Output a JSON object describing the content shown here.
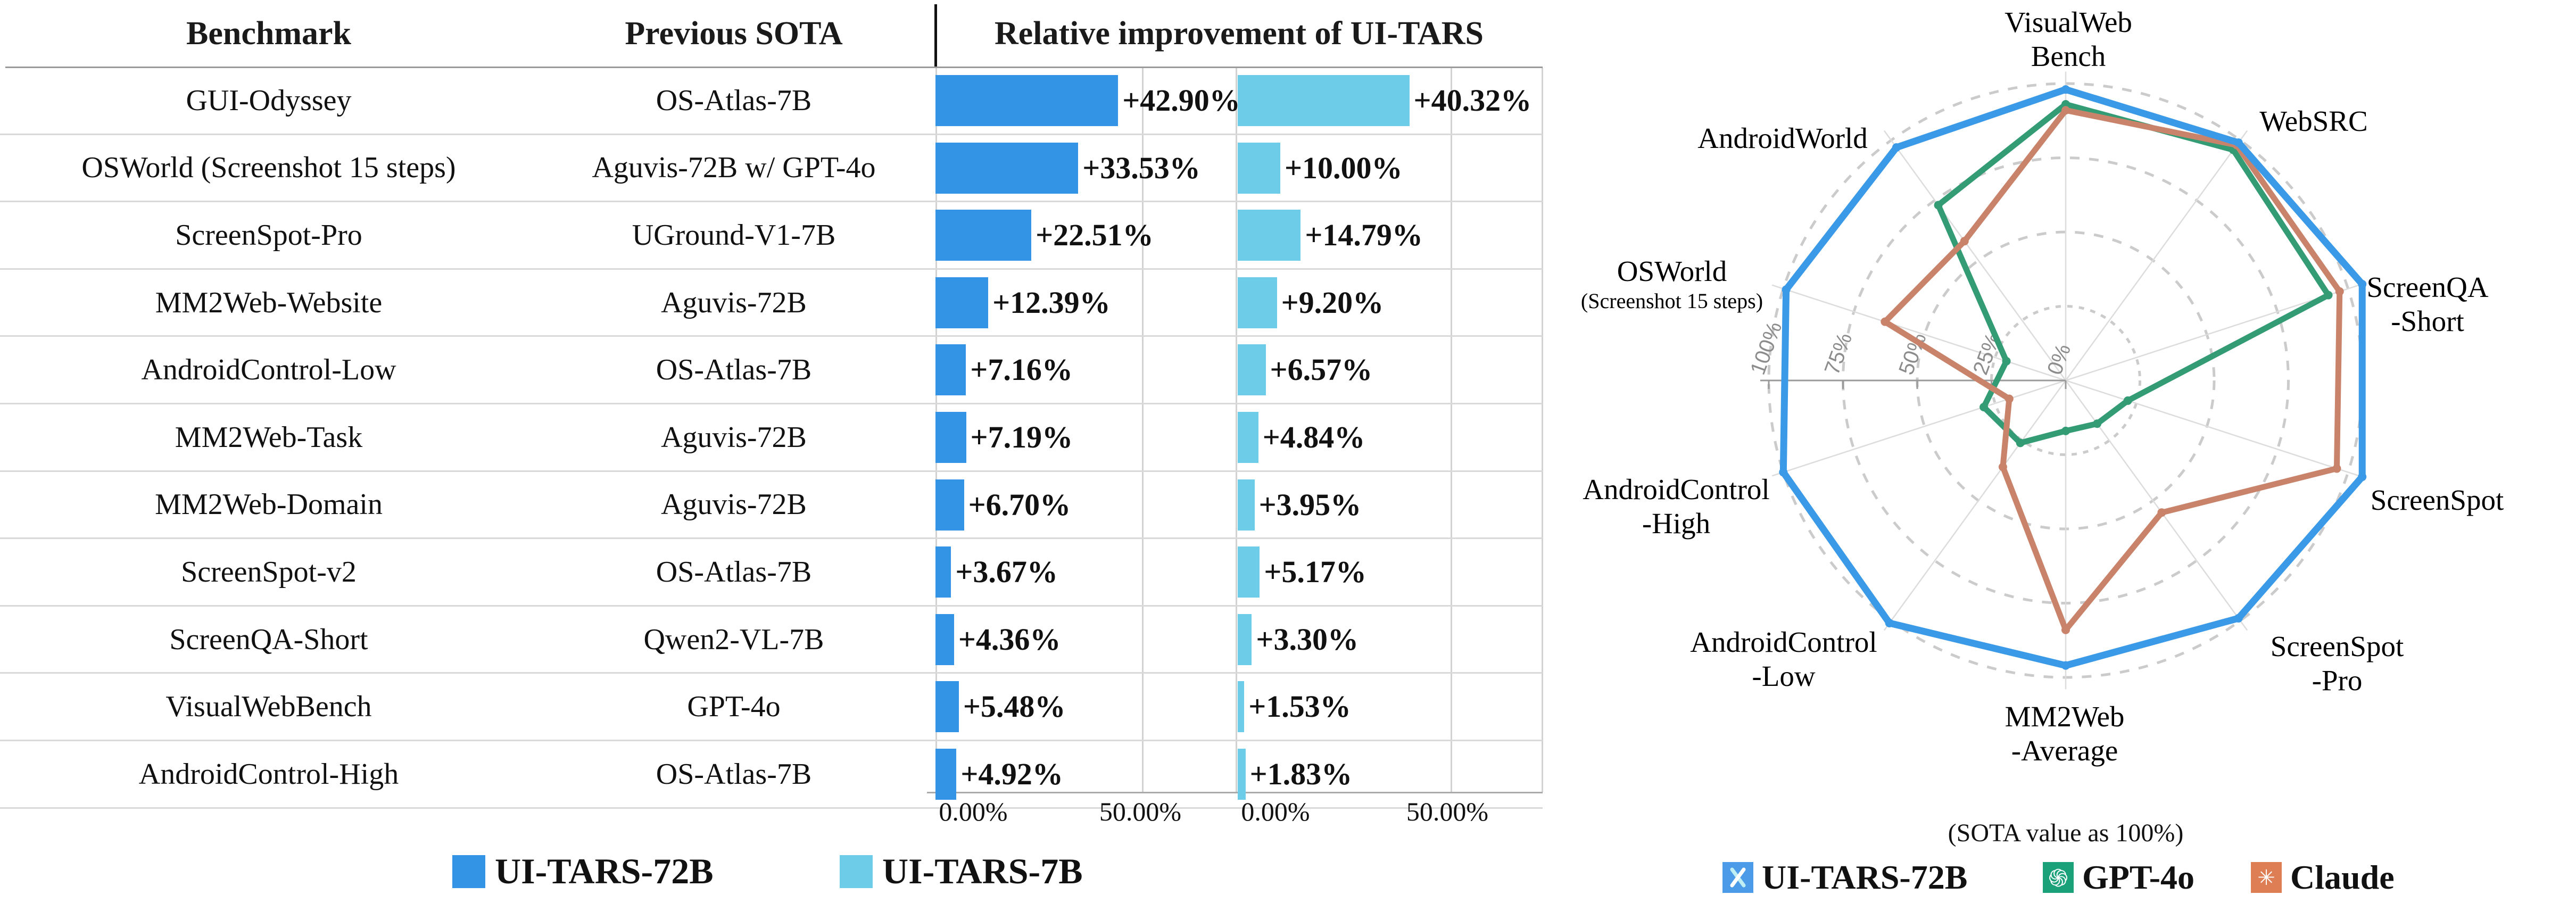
{
  "table": {
    "header": {
      "benchmark": "Benchmark",
      "previous_sota": "Previous SOTA",
      "improvement": "Relative improvement of UI-TARS"
    },
    "rows": [
      {
        "benchmark": "GUI-Odyssey",
        "previous_sota": "OS-Atlas-7B",
        "improvement_72b": "+42.90%",
        "improvement_7b": "+40.32%"
      },
      {
        "benchmark": "OSWorld (Screenshot 15 steps)",
        "previous_sota": "Aguvis-72B w/ GPT-4o",
        "improvement_72b": "+33.53%",
        "improvement_7b": "+10.00%"
      },
      {
        "benchmark": "ScreenSpot-Pro",
        "previous_sota": "UGround-V1-7B",
        "improvement_72b": "+22.51%",
        "improvement_7b": "+14.79%"
      },
      {
        "benchmark": "MM2Web-Website",
        "previous_sota": "Aguvis-72B",
        "improvement_72b": "+12.39%",
        "improvement_7b": "+9.20%"
      },
      {
        "benchmark": "AndroidControl-Low",
        "previous_sota": "OS-Atlas-7B",
        "improvement_72b": "+7.16%",
        "improvement_7b": "+6.57%"
      },
      {
        "benchmark": "MM2Web-Task",
        "previous_sota": "Aguvis-72B",
        "improvement_72b": "+7.19%",
        "improvement_7b": "+4.84%"
      },
      {
        "benchmark": "MM2Web-Domain",
        "previous_sota": "Aguvis-72B",
        "improvement_72b": "+6.70%",
        "improvement_7b": "+3.95%"
      },
      {
        "benchmark": "ScreenSpot-v2",
        "previous_sota": "OS-Atlas-7B",
        "improvement_72b": "+3.67%",
        "improvement_7b": "+5.17%"
      },
      {
        "benchmark": "ScreenQA-Short",
        "previous_sota": "Qwen2-VL-7B",
        "improvement_72b": "+4.36%",
        "improvement_7b": "+3.30%"
      },
      {
        "benchmark": "VisualWebBench",
        "previous_sota": "GPT-4o",
        "improvement_72b": "+5.48%",
        "improvement_7b": "+1.53%"
      },
      {
        "benchmark": "AndroidControl-High",
        "previous_sota": "OS-Atlas-7B",
        "improvement_72b": "+4.92%",
        "improvement_7b": "+1.83%"
      }
    ],
    "x_ticks": [
      "0.00%",
      "50.00%",
      "0.00%",
      "50.00%"
    ],
    "legend": [
      {
        "label": "UI-TARS-72B",
        "color": "#3394E6"
      },
      {
        "label": "UI-TARS-7B",
        "color": "#6DCDE9"
      }
    ]
  },
  "radar": {
    "axis_labels": [
      [
        "VisualWeb",
        "Bench"
      ],
      [
        "WebSRC"
      ],
      [
        "ScreenQA",
        "-Short"
      ],
      [
        "ScreenSpot"
      ],
      [
        "ScreenSpot",
        "-Pro"
      ],
      [
        "MM2Web",
        "-Average"
      ],
      [
        "AndroidControl",
        "-Low"
      ],
      [
        "AndroidControl",
        "-High"
      ],
      [
        "OSWorld",
        "(Screenshot 15 steps)"
      ],
      [
        "AndroidWorld"
      ]
    ],
    "tick_labels": [
      "0%",
      "25%",
      "50%",
      "75%",
      "100%"
    ],
    "caption": "(SOTA value as 100%)",
    "legend": [
      {
        "label": "UI-TARS-72B",
        "color": "#4C9BE8",
        "icon": "uitars-logo"
      },
      {
        "label": "GPT-4o",
        "color": "#1AA179",
        "icon": "openai-logo"
      },
      {
        "label": "Claude",
        "color": "#DD7E55",
        "icon": "claude-logo"
      }
    ]
  },
  "chart_data": [
    {
      "type": "bar",
      "title": "Relative improvement of UI-TARS",
      "orientation": "horizontal",
      "categories": [
        "GUI-Odyssey",
        "OSWorld (Screenshot 15 steps)",
        "ScreenSpot-Pro",
        "MM2Web-Website",
        "AndroidControl-Low",
        "MM2Web-Task",
        "MM2Web-Domain",
        "ScreenSpot-v2",
        "ScreenQA-Short",
        "VisualWebBench",
        "AndroidControl-High"
      ],
      "previous_sota": [
        "OS-Atlas-7B",
        "Aguvis-72B w/ GPT-4o",
        "UGround-V1-7B",
        "Aguvis-72B",
        "OS-Atlas-7B",
        "Aguvis-72B",
        "Aguvis-72B",
        "OS-Atlas-7B",
        "Qwen2-VL-7B",
        "GPT-4o",
        "OS-Atlas-7B"
      ],
      "series": [
        {
          "name": "UI-TARS-72B",
          "color": "#3394E6",
          "values": [
            42.9,
            33.53,
            22.51,
            12.39,
            7.16,
            7.19,
            6.7,
            3.67,
            4.36,
            5.48,
            4.92
          ]
        },
        {
          "name": "UI-TARS-7B",
          "color": "#6DCDE9",
          "values": [
            40.32,
            10.0,
            14.79,
            9.2,
            6.57,
            4.84,
            3.95,
            5.17,
            3.3,
            1.53,
            1.83
          ]
        }
      ],
      "xlabel": "",
      "ylabel": "",
      "xlim": [
        0,
        71
      ],
      "x_tick_values": [
        0,
        50
      ],
      "grid": true,
      "legend_position": "bottom"
    },
    {
      "type": "radar",
      "title": "(SOTA value as 100%)",
      "categories": [
        "VisualWebBench",
        "WebSRC",
        "ScreenQA-Short",
        "ScreenSpot",
        "ScreenSpot-Pro",
        "MM2Web-Average",
        "AndroidControl-Low",
        "AndroidControl-High",
        "OSWorld (Screenshot 15 steps)",
        "AndroidWorld"
      ],
      "radial_ticks_percent": [
        0,
        25,
        50,
        75,
        100
      ],
      "rlim": [
        0,
        110
      ],
      "series": [
        {
          "name": "UI-TARS-72B",
          "color": "#3B9AE8",
          "values": [
            98,
            99,
            105,
            105,
            99,
            96,
            101,
            100,
            99,
            97
          ]
        },
        {
          "name": "GPT-4o",
          "color": "#339C74",
          "values": [
            93,
            96,
            93,
            22,
            18,
            17,
            26,
            29,
            21,
            73
          ]
        },
        {
          "name": "Claude",
          "color": "#C8836A",
          "values": [
            91,
            98,
            97,
            96,
            55,
            84,
            36,
            20,
            64,
            58
          ]
        }
      ],
      "legend_position": "bottom",
      "grid": true
    }
  ]
}
